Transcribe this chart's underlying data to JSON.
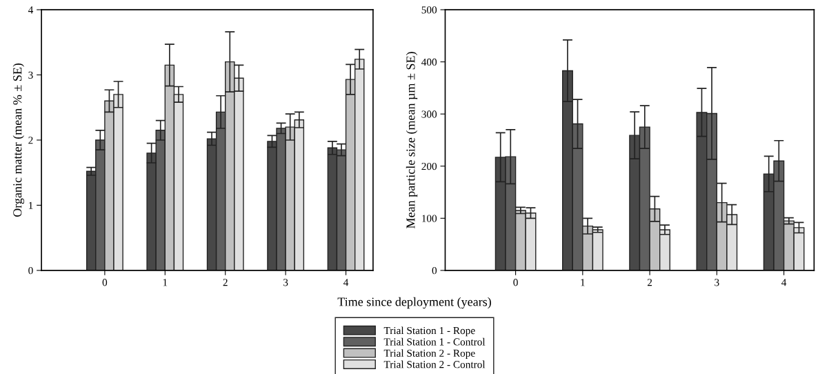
{
  "chart_data": [
    {
      "type": "bar",
      "ylabel": "Organic matter (mean % ± SE)",
      "xlabel": "Time since deployment (years)",
      "categories": [
        "0",
        "1",
        "2",
        "3",
        "4"
      ],
      "ylim": [
        0,
        4
      ],
      "yticks": [
        0,
        1,
        2,
        3,
        4
      ],
      "grid": false,
      "legend": "bottom",
      "series": [
        {
          "name": "Trial Station 1 - Rope",
          "color": "#484848",
          "values": [
            1.52,
            1.8,
            2.02,
            1.98,
            1.88
          ],
          "errors": [
            0.06,
            0.15,
            0.1,
            0.09,
            0.1
          ]
        },
        {
          "name": "Trial Station 1 - Control",
          "color": "#606060",
          "values": [
            2.0,
            2.15,
            2.43,
            2.18,
            1.85
          ],
          "errors": [
            0.15,
            0.15,
            0.25,
            0.08,
            0.09
          ]
        },
        {
          "name": "Trial Station 2 - Rope",
          "color": "#c0c0c0",
          "values": [
            2.6,
            3.15,
            3.2,
            2.2,
            2.93
          ],
          "errors": [
            0.17,
            0.32,
            0.46,
            0.2,
            0.23
          ]
        },
        {
          "name": "Trial Station 2 - Control",
          "color": "#e0e0e0",
          "values": [
            2.7,
            2.7,
            2.95,
            2.31,
            3.24
          ],
          "errors": [
            0.2,
            0.12,
            0.2,
            0.12,
            0.15
          ]
        }
      ]
    },
    {
      "type": "bar",
      "ylabel": "Mean particle size (mean µm ± SE)",
      "categories": [
        "0",
        "1",
        "2",
        "3",
        "4"
      ],
      "ylim": [
        0,
        500
      ],
      "yticks": [
        0,
        100,
        200,
        300,
        400,
        500
      ],
      "grid": false,
      "series": [
        {
          "color": "#484848",
          "values": [
            217,
            383,
            259,
            303,
            185
          ],
          "errors": [
            47,
            59,
            45,
            46,
            34
          ]
        },
        {
          "color": "#606060",
          "values": [
            218,
            281,
            275,
            301,
            210
          ],
          "errors": [
            52,
            47,
            41,
            88,
            39
          ]
        },
        {
          "color": "#c0c0c0",
          "values": [
            115,
            85,
            118,
            130,
            95
          ],
          "errors": [
            6,
            15,
            24,
            37,
            6
          ]
        },
        {
          "color": "#e0e0e0",
          "values": [
            110,
            78,
            78,
            107,
            82
          ],
          "errors": [
            10,
            5,
            9,
            19,
            10
          ]
        }
      ]
    }
  ]
}
